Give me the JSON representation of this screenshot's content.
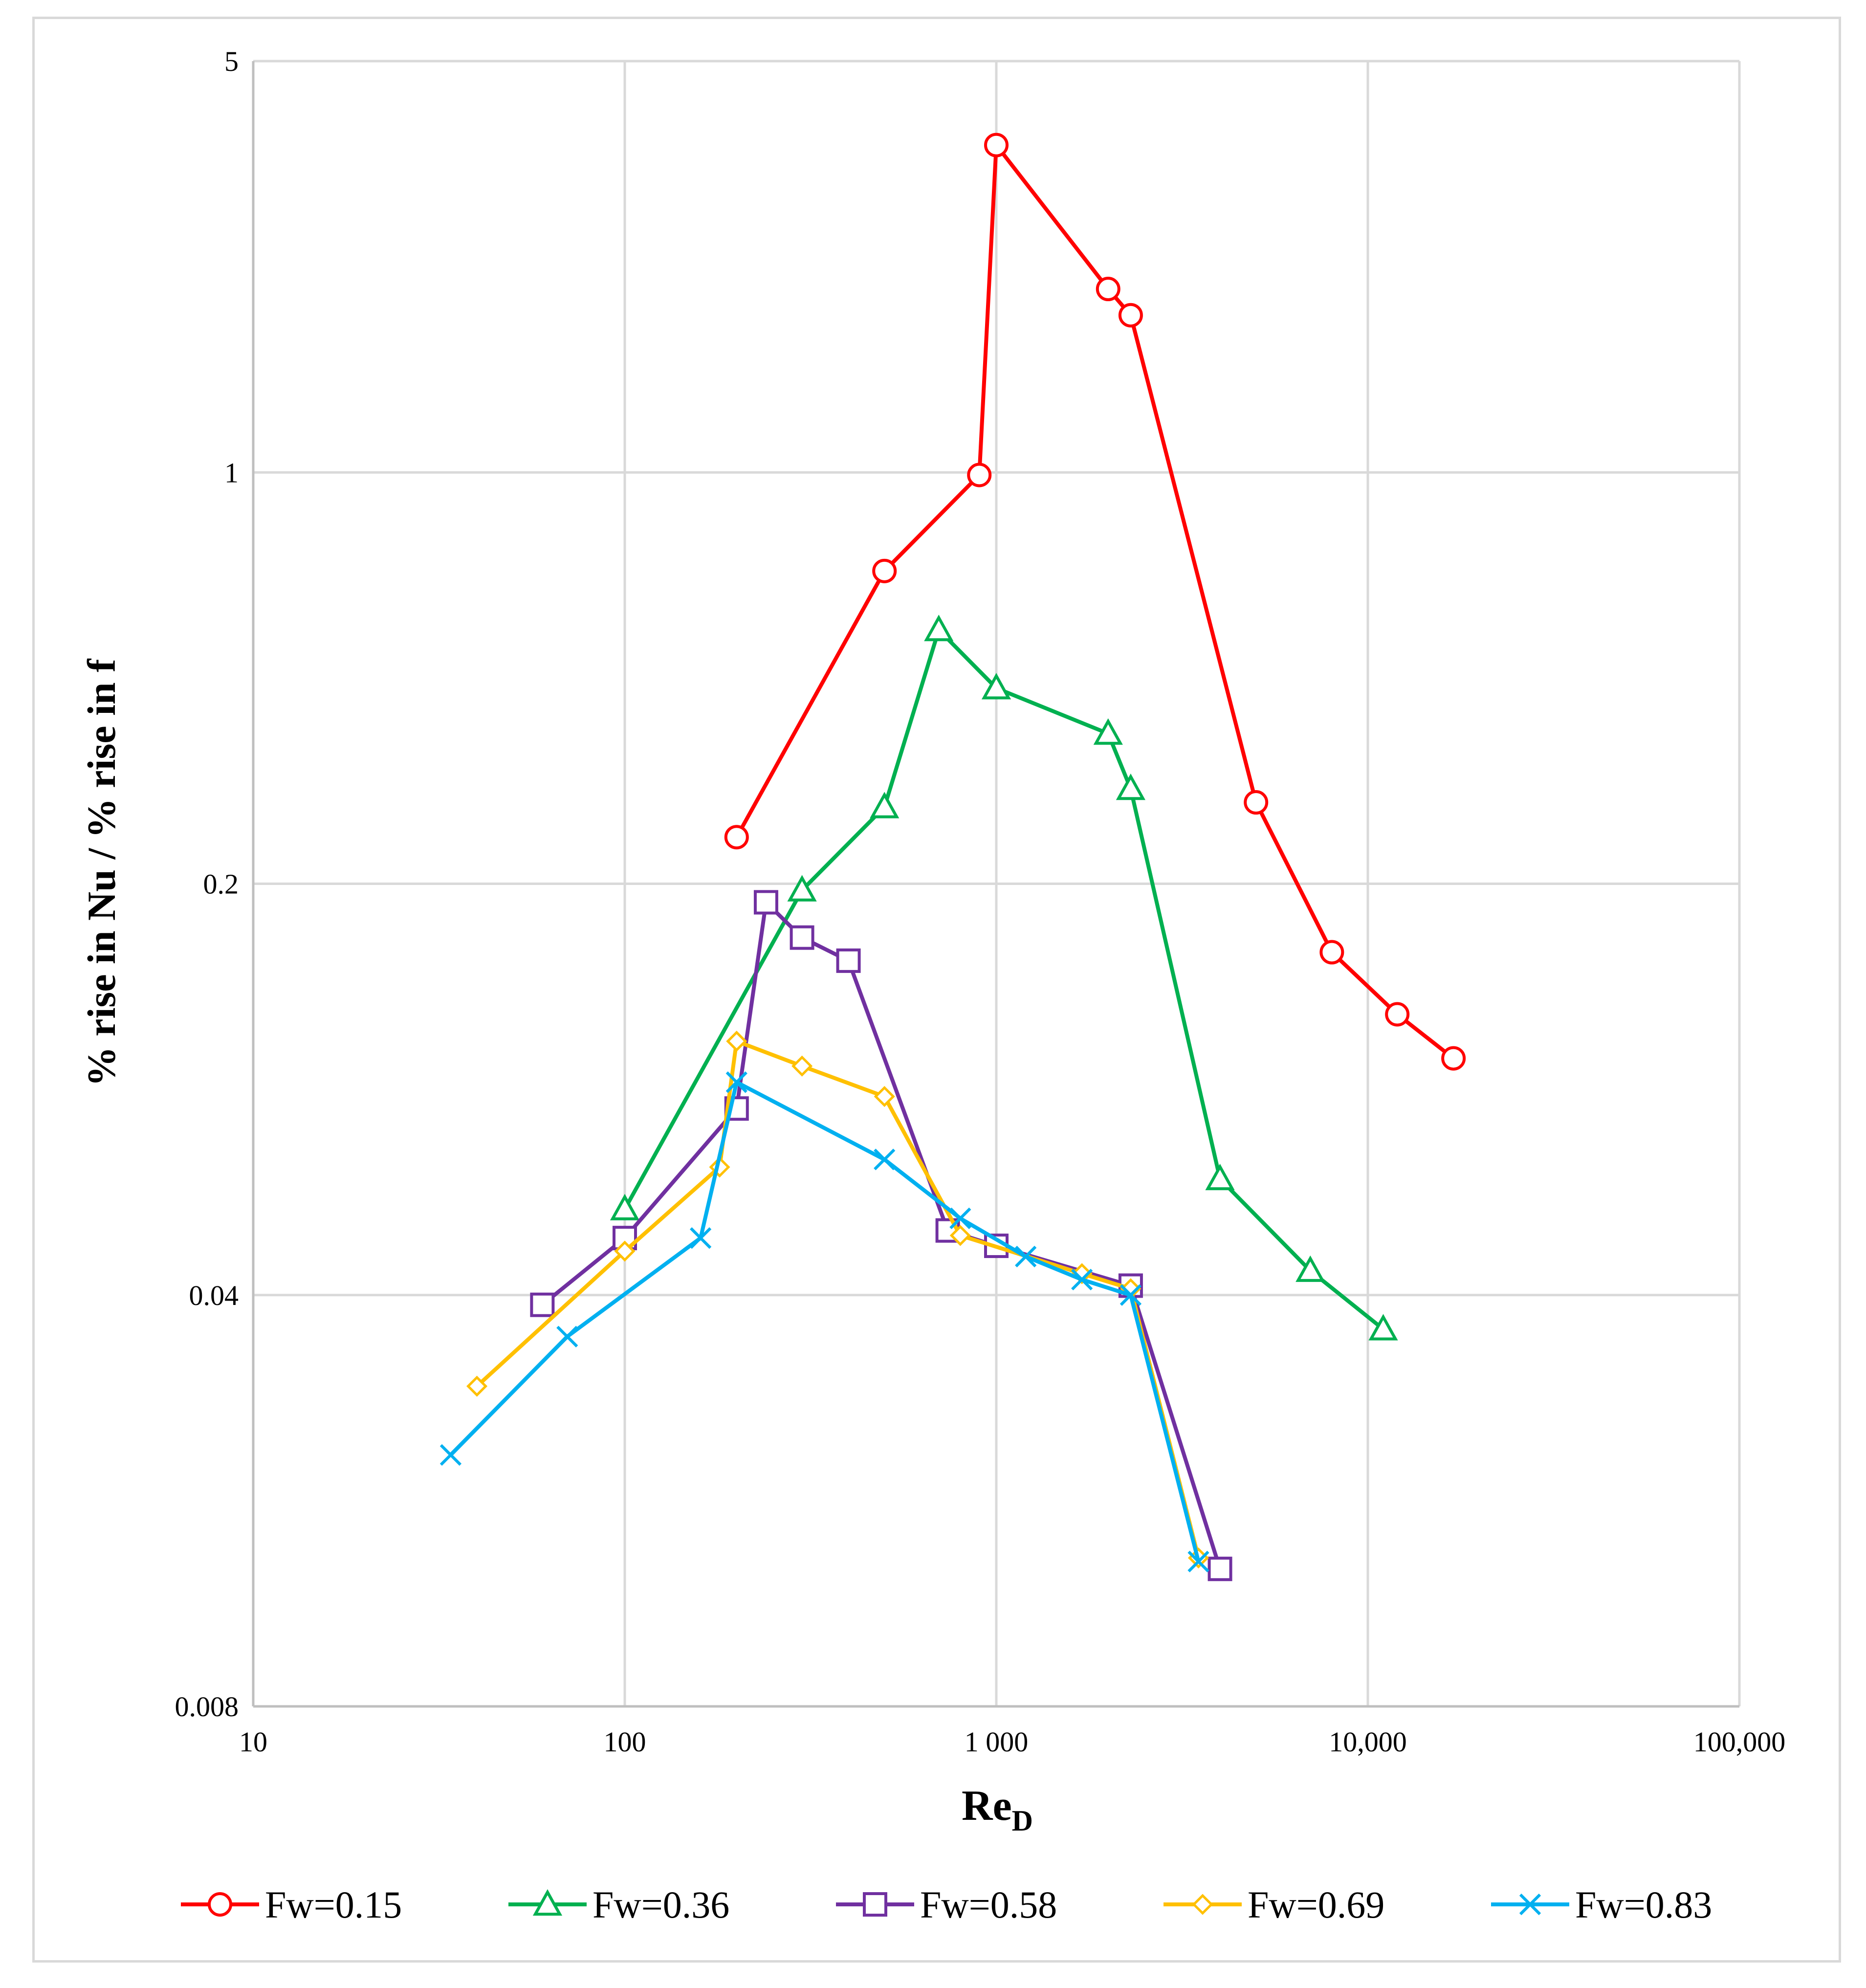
{
  "chart_data": {
    "type": "line",
    "title": "",
    "xlabel": "Re",
    "xlabel_sub": "D",
    "ylabel": "% rise in Nu / % rise in f",
    "xscale": "log",
    "yscale": "log",
    "xlim": [
      10,
      100000
    ],
    "ylim": [
      0.008,
      5
    ],
    "xticks": [
      10,
      100,
      1000,
      10000,
      100000
    ],
    "xtick_labels": [
      "10",
      "100",
      "1 000",
      "10,000",
      "100,000"
    ],
    "yticks": [
      0.008,
      0.04,
      0.2,
      1,
      5
    ],
    "ytick_labels": [
      "0.008",
      "0.04",
      "0.2",
      "1",
      "5"
    ],
    "grid": true,
    "legend_position": "bottom",
    "series": [
      {
        "name": "Fw=0.15",
        "color": "#ff0000",
        "marker": "circle",
        "x": [
          200,
          500,
          900,
          1000,
          2000,
          2300,
          5000,
          8000,
          12000,
          17000
        ],
        "y": [
          0.24,
          0.68,
          0.99,
          3.6,
          2.05,
          1.85,
          0.275,
          0.153,
          0.12,
          0.101
        ]
      },
      {
        "name": "Fw=0.36",
        "color": "#00b050",
        "marker": "triangle",
        "x": [
          100,
          300,
          500,
          700,
          1000,
          2000,
          2300,
          4000,
          7000,
          11000
        ],
        "y": [
          0.056,
          0.195,
          0.27,
          0.54,
          0.43,
          0.36,
          0.29,
          0.063,
          0.044,
          0.035
        ]
      },
      {
        "name": "Fw=0.58",
        "color": "#7030a0",
        "marker": "square",
        "x": [
          60,
          100,
          200,
          240,
          300,
          400,
          740,
          1000,
          2300,
          4000
        ],
        "y": [
          0.0385,
          0.05,
          0.083,
          0.186,
          0.162,
          0.148,
          0.0515,
          0.0485,
          0.0415,
          0.0137
        ]
      },
      {
        "name": "Fw=0.69",
        "color": "#ffc000",
        "marker": "diamond",
        "x": [
          40,
          100,
          180,
          200,
          300,
          500,
          800,
          1700,
          2300,
          3500
        ],
        "y": [
          0.028,
          0.0475,
          0.066,
          0.108,
          0.098,
          0.087,
          0.0505,
          0.0435,
          0.041,
          0.0143
        ]
      },
      {
        "name": "Fw=0.83",
        "color": "#00b0f0",
        "marker": "x",
        "x": [
          34,
          70,
          160,
          200,
          500,
          800,
          1200,
          1700,
          2300,
          3500
        ],
        "y": [
          0.0214,
          0.034,
          0.05,
          0.092,
          0.068,
          0.054,
          0.0465,
          0.0425,
          0.04,
          0.0141
        ]
      }
    ]
  }
}
